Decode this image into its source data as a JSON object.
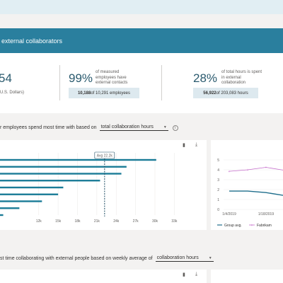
{
  "banner": {
    "title": "external collaborators"
  },
  "kpis": [
    {
      "big": "54",
      "desc": [
        "",
        "",
        "U.S. Dollars)"
      ],
      "pill": ""
    },
    {
      "big": "99%",
      "desc": [
        "of measured",
        "employees have",
        "external contacts"
      ],
      "pill_bold": "10,188",
      "pill_rest": " of 10,291 employees"
    },
    {
      "big": "28%",
      "desc": [
        "of total hours is spent",
        "in external",
        "collaboration"
      ],
      "pill_bold": "56,922",
      "pill_rest": " of 203,083 hours"
    }
  ],
  "section1": {
    "sentence": "r employees spend most time with based on",
    "dropdown_value": "total collaboration hours",
    "info": "i"
  },
  "section2": {
    "sentence": "st time collaborating with external people based on weekly average of",
    "dropdown_value": "collaboration hours"
  },
  "bar_chart_data": {
    "type": "bar",
    "orientation": "horizontal",
    "values": [
      30200,
      25600,
      24800,
      21500,
      15800,
      15000,
      12500,
      9000,
      6500
    ],
    "xlim": [
      6000,
      38000
    ],
    "x_ticks": [
      "12k",
      "15k",
      "18k",
      "21k",
      "24k",
      "27k",
      "30k",
      "33k"
    ],
    "tick_values": [
      12000,
      15000,
      18000,
      21000,
      24000,
      27000,
      30000,
      33000
    ],
    "average": 22200,
    "average_label": "Avg 22.2k",
    "bar_color": "#1b7c97"
  },
  "chart_data": {
    "type": "line",
    "x": [
      "1/4/2019",
      "1/11/2019",
      "1/18/2019",
      "1/25/2019"
    ],
    "x_ticks": [
      "1/4/2019",
      "1/18/2019"
    ],
    "ylim": [
      0,
      5
    ],
    "y_ticks": [
      "0",
      "1",
      "2",
      "3",
      "4",
      "5"
    ],
    "series": [
      {
        "name": "Group avg.",
        "values": [
          1.85,
          1.85,
          1.7,
          1.4
        ],
        "color": "#1f6e8c"
      },
      {
        "name": "Fabrikam",
        "values": [
          3.85,
          4.0,
          4.25,
          3.95
        ],
        "color": "#c56dcb"
      }
    ]
  },
  "icons": {
    "bookmark": "▮",
    "download": "⤓"
  }
}
